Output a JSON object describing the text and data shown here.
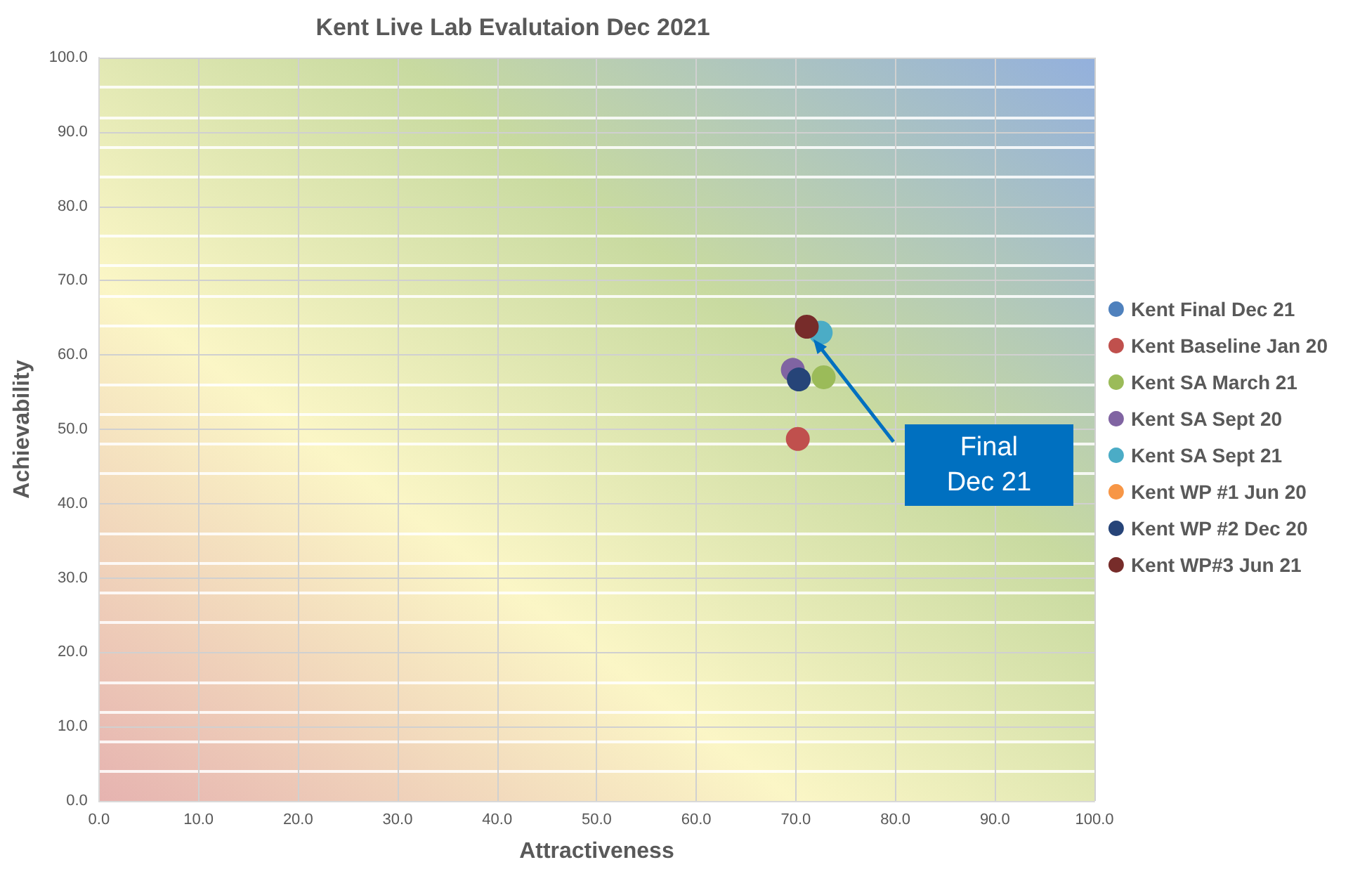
{
  "chart_data": {
    "type": "scatter",
    "title": "Kent Live Lab Evalutaion Dec 2021",
    "xlabel": "Attractiveness",
    "ylabel": "Achievability",
    "xlim": [
      0,
      100
    ],
    "ylim": [
      0,
      100
    ],
    "xticks": [
      {
        "value": 0,
        "label": "0.0"
      },
      {
        "value": 10,
        "label": "10.0"
      },
      {
        "value": 20,
        "label": "20.0"
      },
      {
        "value": 30,
        "label": "30.0"
      },
      {
        "value": 40,
        "label": "40.0"
      },
      {
        "value": 50,
        "label": "50.0"
      },
      {
        "value": 60,
        "label": "60.0"
      },
      {
        "value": 70,
        "label": "70.0"
      },
      {
        "value": 80,
        "label": "80.0"
      },
      {
        "value": 90,
        "label": "90.0"
      },
      {
        "value": 100,
        "label": "100.0"
      }
    ],
    "yticks": [
      {
        "value": 0,
        "label": "0.0"
      },
      {
        "value": 10,
        "label": "10.0"
      },
      {
        "value": 20,
        "label": "20.0"
      },
      {
        "value": 30,
        "label": "30.0"
      },
      {
        "value": 40,
        "label": "40.0"
      },
      {
        "value": 50,
        "label": "50.0"
      },
      {
        "value": 60,
        "label": "60.0"
      },
      {
        "value": 70,
        "label": "70.0"
      },
      {
        "value": 80,
        "label": "80.0"
      },
      {
        "value": 90,
        "label": "90.0"
      },
      {
        "value": 100,
        "label": "100.0"
      }
    ],
    "grid": true,
    "legend": "right",
    "marker": "circle",
    "series": [
      {
        "name": "Kent Final Dec 21",
        "color": "#4f81bd"
      },
      {
        "name": "Kent Baseline Jan 20",
        "color": "#c0504d",
        "x": [
          70.2
        ],
        "values": [
          48.7
        ]
      },
      {
        "name": "Kent SA March 21",
        "color": "#9bbb59",
        "x": [
          72.8
        ],
        "values": [
          57.0
        ]
      },
      {
        "name": "Kent SA Sept 20",
        "color": "#8064a2",
        "x": [
          69.7
        ],
        "values": [
          58.0
        ]
      },
      {
        "name": "Kent SA Sept 21",
        "color": "#4bacc6",
        "x": [
          72.5
        ],
        "values": [
          63.0
        ]
      },
      {
        "name": "Kent WP #1 Jun 20",
        "color": "#f79646"
      },
      {
        "name": "Kent WP #2 Dec 20",
        "color": "#264478",
        "x": [
          70.3
        ],
        "values": [
          56.7
        ]
      },
      {
        "name": "Kent WP#3 Jun 21",
        "color": "#772c2a",
        "x": [
          71.1
        ],
        "values": [
          63.8
        ]
      }
    ],
    "annotations": [
      "Final Dec 21"
    ]
  }
}
